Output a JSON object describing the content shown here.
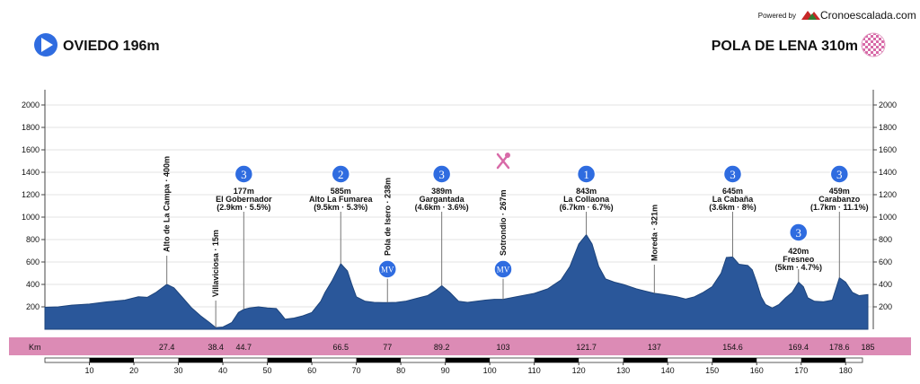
{
  "header": {
    "powered_by": "Powered by",
    "brand": "Cronoescalada.com",
    "start_label": "OVIEDO 196m",
    "finish_label": "POLA DE LENA 310m"
  },
  "colors": {
    "profile_fill": "#2a579a",
    "profile_stroke": "#1d447c",
    "marker_blue": "#2f6ce0",
    "km_band": "#dc8bb5",
    "brand_red": "#c62828",
    "brand_green": "#2e7d32"
  },
  "icons": {
    "start": "play-arrow-icon",
    "finish": "checkered-flag-icon",
    "feed": "fork-spoon-icon"
  },
  "chart_data": {
    "type": "area",
    "title": "",
    "xlabel": "Km",
    "ylabel": "",
    "xlim": [
      0,
      185
    ],
    "ylim": [
      0,
      2200
    ],
    "yticks": [
      200,
      400,
      600,
      800,
      1000,
      1200,
      1400,
      1600,
      1800,
      2000
    ],
    "xticks": [
      10,
      20,
      30,
      40,
      50,
      60,
      70,
      80,
      90,
      100,
      110,
      120,
      130,
      140,
      150,
      160,
      170,
      180
    ],
    "grid": true,
    "profile": [
      [
        0,
        196
      ],
      [
        3,
        200
      ],
      [
        6,
        215
      ],
      [
        10,
        225
      ],
      [
        14,
        245
      ],
      [
        18,
        260
      ],
      [
        21,
        290
      ],
      [
        23,
        285
      ],
      [
        25,
        330
      ],
      [
        27.4,
        400
      ],
      [
        29,
        370
      ],
      [
        31,
        280
      ],
      [
        33,
        190
      ],
      [
        35,
        120
      ],
      [
        37,
        60
      ],
      [
        38.4,
        15
      ],
      [
        40,
        20
      ],
      [
        42,
        60
      ],
      [
        43.5,
        150
      ],
      [
        44.7,
        177
      ],
      [
        46,
        190
      ],
      [
        48,
        200
      ],
      [
        50,
        190
      ],
      [
        52,
        185
      ],
      [
        53,
        140
      ],
      [
        54,
        90
      ],
      [
        56,
        100
      ],
      [
        58,
        120
      ],
      [
        60,
        150
      ],
      [
        62,
        250
      ],
      [
        63,
        330
      ],
      [
        64.5,
        430
      ],
      [
        66.5,
        585
      ],
      [
        68,
        520
      ],
      [
        69,
        400
      ],
      [
        70,
        290
      ],
      [
        72,
        250
      ],
      [
        74,
        240
      ],
      [
        76,
        238
      ],
      [
        77,
        238
      ],
      [
        79,
        240
      ],
      [
        81,
        250
      ],
      [
        84,
        280
      ],
      [
        86,
        300
      ],
      [
        88,
        350
      ],
      [
        89.2,
        389
      ],
      [
        91,
        330
      ],
      [
        93,
        250
      ],
      [
        95,
        240
      ],
      [
        97,
        250
      ],
      [
        99,
        260
      ],
      [
        101,
        267
      ],
      [
        103,
        267
      ],
      [
        106,
        290
      ],
      [
        110,
        320
      ],
      [
        113,
        360
      ],
      [
        116,
        440
      ],
      [
        118,
        560
      ],
      [
        120,
        760
      ],
      [
        121.7,
        843
      ],
      [
        123,
        760
      ],
      [
        124.5,
        560
      ],
      [
        126,
        450
      ],
      [
        128,
        420
      ],
      [
        130,
        400
      ],
      [
        133,
        360
      ],
      [
        135,
        340
      ],
      [
        137,
        321
      ],
      [
        139,
        310
      ],
      [
        142,
        290
      ],
      [
        144,
        270
      ],
      [
        146,
        290
      ],
      [
        148,
        330
      ],
      [
        150,
        380
      ],
      [
        152,
        500
      ],
      [
        153.2,
        640
      ],
      [
        154.6,
        645
      ],
      [
        156,
        580
      ],
      [
        158,
        570
      ],
      [
        159,
        530
      ],
      [
        160,
        420
      ],
      [
        161,
        290
      ],
      [
        162,
        220
      ],
      [
        163.5,
        190
      ],
      [
        165,
        220
      ],
      [
        166.5,
        280
      ],
      [
        168,
        330
      ],
      [
        169.4,
        420
      ],
      [
        170.5,
        380
      ],
      [
        171.5,
        280
      ],
      [
        173,
        250
      ],
      [
        175,
        245
      ],
      [
        177,
        260
      ],
      [
        178.6,
        459
      ],
      [
        180,
        420
      ],
      [
        181.5,
        330
      ],
      [
        183,
        300
      ],
      [
        185,
        310
      ]
    ],
    "climbs": [
      {
        "km": 44.7,
        "category": "3",
        "line1": "177m",
        "line2": "El Gobernador",
        "line3": "(2.9km · 5.5%)"
      },
      {
        "km": 66.5,
        "category": "2",
        "line1": "585m",
        "line2": "Alto La Fumarea",
        "line3": "(9.5km · 5.3%)"
      },
      {
        "km": 89.2,
        "category": "3",
        "line1": "389m",
        "line2": "Gargantada",
        "line3": "(4.6km · 3.6%)"
      },
      {
        "km": 121.7,
        "category": "1",
        "line1": "843m",
        "line2": "La Collaona",
        "line3": "(6.7km · 6.7%)"
      },
      {
        "km": 154.6,
        "category": "3",
        "line1": "645m",
        "line2": "La Cabaña",
        "line3": "(3.6km · 8%)"
      },
      {
        "km": 169.4,
        "category": "3",
        "line1": "420m",
        "line2": "Fresneo",
        "line3": "(5km · 4.7%)"
      },
      {
        "km": 178.6,
        "category": "3",
        "line1": "459m",
        "line2": "Carabanzo",
        "line3": "(1.7km · 11.1%)"
      }
    ],
    "points": [
      {
        "km": 27.4,
        "label": "Alto de La Campa · 400m",
        "alt": 400
      },
      {
        "km": 38.4,
        "label": "Villaviciosa · 15m",
        "alt": 15
      },
      {
        "km": 77,
        "label": "Pola de Isero · 238m",
        "alt": 238,
        "badge": "MV"
      },
      {
        "km": 103,
        "label": "Sotrondio · 267m",
        "alt": 267,
        "badge": "MV",
        "feed": true
      },
      {
        "km": 137,
        "label": "Moreda · 321m",
        "alt": 321
      }
    ],
    "km_markers": [
      "27.4",
      "38.4",
      "44.7",
      "66.5",
      "77",
      "89.2",
      "103",
      "121.7",
      "137",
      "154.6",
      "169.4",
      "178.6",
      "185"
    ]
  }
}
